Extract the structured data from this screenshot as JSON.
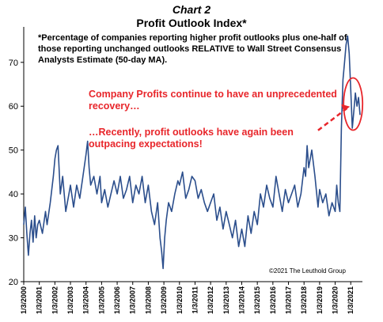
{
  "header": {
    "chart_number": "Chart 2",
    "title": "Profit Outlook Index*",
    "subtitle": "*Percentage of companies reporting higher profit outlooks plus one-half of those reporting unchanged outlooks RELATIVE to Wall Street Consensus Analysts Estimate (50-day MA)."
  },
  "annotations": {
    "callout_1": "Company Profits continue to have an unprecedented recovery…",
    "callout_2": "…Recently, profit outlooks have again been outpacing expectations!",
    "copyright": "©2021 The Leuthold Group"
  },
  "colors": {
    "series": "#2b4e8c",
    "annotation": "#e8262b",
    "axis": "#000000"
  },
  "chart_data": {
    "type": "line",
    "title": "Profit Outlook Index*",
    "ylim": [
      20,
      77
    ],
    "yticks": [
      20,
      30,
      40,
      50,
      60,
      70
    ],
    "xlim": [
      2000,
      2021.75
    ],
    "xtick_labels": [
      "1/3/2000",
      "1/3/2001",
      "1/3/2002",
      "1/3/2003",
      "1/3/2004",
      "1/3/2005",
      "1/3/2006",
      "1/3/2007",
      "1/3/2008",
      "1/3/2009",
      "1/3/2010",
      "1/3/2011",
      "1/3/2012",
      "1/3/2013",
      "1/3/2014",
      "1/3/2015",
      "1/3/2016",
      "1/3/2017",
      "1/3/2018",
      "1/3/2019",
      "1/3/2020",
      "1/3/2021"
    ],
    "grid": false,
    "legend": "none",
    "series": [
      {
        "x": [
          2000.0,
          2000.1,
          2000.2,
          2000.3,
          2000.4,
          2000.5,
          2000.6,
          2000.7,
          2000.8,
          2000.9,
          2001.0,
          2001.2,
          2001.4,
          2001.5,
          2001.7,
          2001.9,
          2002.0,
          2002.1,
          2002.2,
          2002.35,
          2002.5,
          2002.7,
          2002.9,
          2003.0,
          2003.2,
          2003.4,
          2003.6,
          2003.8,
          2004.0,
          2004.1,
          2004.2,
          2004.3,
          2004.5,
          2004.7,
          2004.9,
          2005.0,
          2005.2,
          2005.4,
          2005.6,
          2005.8,
          2006.0,
          2006.2,
          2006.4,
          2006.6,
          2006.8,
          2007.0,
          2007.2,
          2007.4,
          2007.6,
          2007.8,
          2008.0,
          2008.2,
          2008.4,
          2008.6,
          2008.75,
          2008.85,
          2008.95,
          2009.05,
          2009.15,
          2009.3,
          2009.5,
          2009.7,
          2009.9,
          2010.0,
          2010.2,
          2010.4,
          2010.6,
          2010.8,
          2011.0,
          2011.2,
          2011.4,
          2011.6,
          2011.8,
          2012.0,
          2012.2,
          2012.4,
          2012.6,
          2012.8,
          2013.0,
          2013.2,
          2013.4,
          2013.6,
          2013.8,
          2014.0,
          2014.2,
          2014.4,
          2014.6,
          2014.8,
          2015.0,
          2015.2,
          2015.4,
          2015.6,
          2015.8,
          2016.0,
          2016.2,
          2016.4,
          2016.6,
          2016.8,
          2017.0,
          2017.2,
          2017.4,
          2017.6,
          2017.8,
          2018.0,
          2018.1,
          2018.2,
          2018.3,
          2018.5,
          2018.7,
          2018.9,
          2019.0,
          2019.2,
          2019.4,
          2019.6,
          2019.8,
          2020.0,
          2020.1,
          2020.2,
          2020.3,
          2020.4,
          2020.5,
          2020.6,
          2020.7,
          2020.8,
          2020.9,
          2021.0,
          2021.1,
          2021.2,
          2021.3,
          2021.4,
          2021.5,
          2021.6
        ],
        "values": [
          33,
          37,
          31,
          26,
          31,
          34,
          29,
          35,
          30,
          33,
          34,
          31,
          36,
          33,
          38,
          44,
          48,
          50,
          51,
          40,
          44,
          36,
          40,
          42,
          37,
          42,
          39,
          44,
          49,
          52,
          46,
          42,
          44,
          40,
          44,
          38,
          41,
          37,
          40,
          43,
          40,
          44,
          39,
          41,
          44,
          38,
          42,
          40,
          44,
          38,
          42,
          36,
          33,
          38,
          30,
          27,
          23,
          30,
          34,
          38,
          36,
          40,
          43,
          42,
          45,
          39,
          41,
          44,
          43,
          39,
          41,
          38,
          36,
          38,
          40,
          34,
          37,
          32,
          36,
          33,
          30,
          34,
          28,
          32,
          28,
          35,
          31,
          36,
          33,
          40,
          37,
          42,
          39,
          37,
          44,
          40,
          36,
          41,
          38,
          40,
          42,
          37,
          40,
          46,
          44,
          51,
          46,
          50,
          44,
          37,
          41,
          38,
          40,
          35,
          38,
          36,
          42,
          38,
          36,
          55,
          66,
          70,
          74,
          76,
          72,
          64,
          55,
          59,
          63,
          60,
          62,
          58
        ]
      }
    ]
  }
}
